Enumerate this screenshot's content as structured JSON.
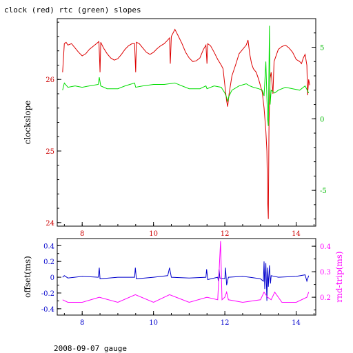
{
  "title": "clock (red) rtc (green) slopes",
  "footer": "2008-09-07 gauge",
  "colors": {
    "clock": "#dd0000",
    "rtc": "#00dd00",
    "offset": "#0000cc",
    "rndtrip": "#ff00ff",
    "axis": "#000000"
  },
  "chart_data": [
    {
      "type": "line",
      "xlim": [
        7.3,
        14.55
      ],
      "x_ticks": [
        "8",
        "10",
        "12",
        "14"
      ],
      "ylabel": "clockslope",
      "ylim": [
        23.95,
        26.85
      ],
      "y_ticks": [
        "24",
        "25",
        "26"
      ],
      "y2lim": [
        -7.5,
        7
      ],
      "y2_ticks": [
        "-5",
        "0",
        "5"
      ],
      "grid": false,
      "series": [
        {
          "name": "clock",
          "axis": "left",
          "points": [
            [
              7.45,
              26.1
            ],
            [
              7.5,
              26.5
            ],
            [
              7.55,
              26.52
            ],
            [
              7.6,
              26.48
            ],
            [
              7.7,
              26.5
            ],
            [
              7.8,
              26.44
            ],
            [
              7.9,
              26.38
            ],
            [
              8.0,
              26.33
            ],
            [
              8.1,
              26.36
            ],
            [
              8.2,
              26.42
            ],
            [
              8.3,
              26.46
            ],
            [
              8.4,
              26.5
            ],
            [
              8.47,
              26.53
            ],
            [
              8.5,
              26.1
            ],
            [
              8.52,
              26.52
            ],
            [
              8.6,
              26.44
            ],
            [
              8.7,
              26.36
            ],
            [
              8.8,
              26.3
            ],
            [
              8.9,
              26.27
            ],
            [
              9.0,
              26.29
            ],
            [
              9.1,
              26.35
            ],
            [
              9.2,
              26.42
            ],
            [
              9.3,
              26.47
            ],
            [
              9.4,
              26.5
            ],
            [
              9.47,
              26.5
            ],
            [
              9.5,
              26.1
            ],
            [
              9.52,
              26.52
            ],
            [
              9.6,
              26.5
            ],
            [
              9.7,
              26.44
            ],
            [
              9.8,
              26.38
            ],
            [
              9.9,
              26.35
            ],
            [
              10.0,
              26.38
            ],
            [
              10.1,
              26.43
            ],
            [
              10.2,
              26.47
            ],
            [
              10.3,
              26.5
            ],
            [
              10.4,
              26.55
            ],
            [
              10.45,
              26.58
            ],
            [
              10.47,
              26.22
            ],
            [
              10.5,
              26.6
            ],
            [
              10.6,
              26.7
            ],
            [
              10.7,
              26.6
            ],
            [
              10.8,
              26.5
            ],
            [
              10.9,
              26.38
            ],
            [
              11.0,
              26.3
            ],
            [
              11.1,
              26.25
            ],
            [
              11.2,
              26.26
            ],
            [
              11.3,
              26.3
            ],
            [
              11.4,
              26.42
            ],
            [
              11.47,
              26.48
            ],
            [
              11.5,
              26.22
            ],
            [
              11.52,
              26.5
            ],
            [
              11.6,
              26.47
            ],
            [
              11.7,
              26.38
            ],
            [
              11.8,
              26.28
            ],
            [
              11.9,
              26.2
            ],
            [
              11.95,
              26.15
            ],
            [
              12.0,
              25.92
            ],
            [
              12.05,
              25.7
            ],
            [
              12.08,
              25.62
            ],
            [
              12.12,
              25.8
            ],
            [
              12.2,
              26.05
            ],
            [
              12.3,
              26.2
            ],
            [
              12.4,
              26.36
            ],
            [
              12.5,
              26.42
            ],
            [
              12.6,
              26.48
            ],
            [
              12.65,
              26.55
            ],
            [
              12.7,
              26.35
            ],
            [
              12.75,
              26.22
            ],
            [
              12.8,
              26.15
            ],
            [
              12.88,
              26.1
            ],
            [
              12.95,
              26.0
            ],
            [
              13.05,
              25.82
            ],
            [
              13.1,
              25.6
            ],
            [
              13.15,
              25.28
            ],
            [
              13.18,
              25.0
            ],
            [
              13.2,
              24.3
            ],
            [
              13.22,
              24.05
            ],
            [
              13.24,
              25.4
            ],
            [
              13.27,
              26.02
            ],
            [
              13.3,
              26.1
            ],
            [
              13.35,
              25.8
            ],
            [
              13.38,
              26.25
            ],
            [
              13.45,
              26.35
            ],
            [
              13.5,
              26.42
            ],
            [
              13.6,
              26.46
            ],
            [
              13.7,
              26.48
            ],
            [
              13.8,
              26.44
            ],
            [
              13.9,
              26.38
            ],
            [
              14.0,
              26.28
            ],
            [
              14.1,
              26.25
            ],
            [
              14.15,
              26.22
            ],
            [
              14.2,
              26.3
            ],
            [
              14.25,
              26.35
            ],
            [
              14.3,
              26.2
            ],
            [
              14.32,
              25.78
            ],
            [
              14.35,
              26.0
            ],
            [
              14.38,
              25.92
            ]
          ]
        },
        {
          "name": "rtc",
          "axis": "right",
          "points": [
            [
              7.45,
              2.0
            ],
            [
              7.5,
              2.5
            ],
            [
              7.6,
              2.2
            ],
            [
              7.8,
              2.3
            ],
            [
              8.0,
              2.2
            ],
            [
              8.2,
              2.3
            ],
            [
              8.45,
              2.4
            ],
            [
              8.48,
              2.9
            ],
            [
              8.52,
              2.3
            ],
            [
              8.7,
              2.1
            ],
            [
              9.0,
              2.1
            ],
            [
              9.2,
              2.3
            ],
            [
              9.47,
              2.5
            ],
            [
              9.5,
              2.2
            ],
            [
              9.7,
              2.3
            ],
            [
              10.0,
              2.4
            ],
            [
              10.3,
              2.4
            ],
            [
              10.6,
              2.5
            ],
            [
              10.8,
              2.3
            ],
            [
              11.0,
              2.1
            ],
            [
              11.3,
              2.1
            ],
            [
              11.47,
              2.3
            ],
            [
              11.5,
              2.1
            ],
            [
              11.7,
              2.3
            ],
            [
              11.9,
              2.2
            ],
            [
              12.0,
              1.8
            ],
            [
              12.05,
              1.5
            ],
            [
              12.08,
              1.2
            ],
            [
              12.12,
              1.6
            ],
            [
              12.2,
              2.0
            ],
            [
              12.4,
              2.3
            ],
            [
              12.6,
              2.45
            ],
            [
              12.7,
              2.3
            ],
            [
              12.8,
              2.2
            ],
            [
              12.95,
              2.1
            ],
            [
              13.05,
              2.0
            ],
            [
              13.1,
              1.6
            ],
            [
              13.15,
              4.0
            ],
            [
              13.18,
              1.5
            ],
            [
              13.2,
              0.0
            ],
            [
              13.22,
              -0.5
            ],
            [
              13.25,
              6.5
            ],
            [
              13.27,
              1.0
            ],
            [
              13.3,
              2.0
            ],
            [
              13.4,
              1.8
            ],
            [
              13.5,
              2.0
            ],
            [
              13.7,
              2.2
            ],
            [
              13.9,
              2.1
            ],
            [
              14.1,
              2.0
            ],
            [
              14.25,
              2.3
            ],
            [
              14.35,
              1.8
            ]
          ]
        }
      ]
    },
    {
      "type": "line",
      "xlim": [
        7.3,
        14.55
      ],
      "x_ticks": [
        "8",
        "10",
        "12",
        "14"
      ],
      "ylabel": "offset(ms)",
      "ylim": [
        -0.48,
        0.49
      ],
      "y_ticks": [
        "-0.4",
        "-0.2",
        "0",
        "0.2",
        "0.4"
      ],
      "y2label": "rnd-trip(ms)",
      "y2lim": [
        0.13,
        0.43
      ],
      "y2_ticks": [
        "0.2",
        "0.3",
        "0.4"
      ],
      "grid": false,
      "series": [
        {
          "name": "offset",
          "axis": "left",
          "points": [
            [
              7.45,
              0.0
            ],
            [
              7.5,
              0.02
            ],
            [
              7.6,
              -0.01
            ],
            [
              8.0,
              0.01
            ],
            [
              8.45,
              0.0
            ],
            [
              8.48,
              0.12
            ],
            [
              8.5,
              -0.02
            ],
            [
              9.0,
              0.0
            ],
            [
              9.47,
              0.0
            ],
            [
              9.49,
              0.12
            ],
            [
              9.52,
              -0.02
            ],
            [
              10.0,
              0.0
            ],
            [
              10.4,
              0.02
            ],
            [
              10.45,
              0.12
            ],
            [
              10.5,
              0.0
            ],
            [
              11.0,
              -0.01
            ],
            [
              11.47,
              0.0
            ],
            [
              11.49,
              0.1
            ],
            [
              11.52,
              -0.03
            ],
            [
              11.8,
              0.0
            ],
            [
              11.82,
              -0.05
            ],
            [
              11.84,
              0.1
            ],
            [
              11.86,
              -0.01
            ],
            [
              12.0,
              -0.02
            ],
            [
              12.02,
              0.12
            ],
            [
              12.05,
              -0.1
            ],
            [
              12.1,
              0.0
            ],
            [
              12.5,
              0.01
            ],
            [
              12.7,
              0.0
            ],
            [
              13.0,
              -0.02
            ],
            [
              13.08,
              -0.05
            ],
            [
              13.1,
              0.2
            ],
            [
              13.12,
              -0.15
            ],
            [
              13.15,
              0.18
            ],
            [
              13.18,
              -0.3
            ],
            [
              13.2,
              0.12
            ],
            [
              13.22,
              -0.12
            ],
            [
              13.25,
              0.15
            ],
            [
              13.28,
              -0.08
            ],
            [
              13.3,
              0.02
            ],
            [
              13.5,
              0.0
            ],
            [
              14.0,
              0.01
            ],
            [
              14.25,
              0.03
            ],
            [
              14.3,
              -0.05
            ],
            [
              14.35,
              0.02
            ]
          ]
        },
        {
          "name": "rnd-trip",
          "axis": "right",
          "points": [
            [
              7.45,
              0.19
            ],
            [
              7.6,
              0.18
            ],
            [
              8.0,
              0.18
            ],
            [
              8.48,
              0.2
            ],
            [
              9.0,
              0.18
            ],
            [
              9.49,
              0.21
            ],
            [
              10.0,
              0.18
            ],
            [
              10.45,
              0.21
            ],
            [
              11.0,
              0.18
            ],
            [
              11.5,
              0.2
            ],
            [
              11.8,
              0.19
            ],
            [
              11.88,
              0.42
            ],
            [
              11.92,
              0.19
            ],
            [
              12.0,
              0.2
            ],
            [
              12.05,
              0.22
            ],
            [
              12.1,
              0.19
            ],
            [
              12.5,
              0.18
            ],
            [
              13.0,
              0.19
            ],
            [
              13.1,
              0.22
            ],
            [
              13.2,
              0.2
            ],
            [
              13.3,
              0.19
            ],
            [
              13.4,
              0.22
            ],
            [
              13.6,
              0.18
            ],
            [
              14.0,
              0.18
            ],
            [
              14.3,
              0.2
            ],
            [
              14.35,
              0.22
            ]
          ]
        }
      ]
    }
  ]
}
